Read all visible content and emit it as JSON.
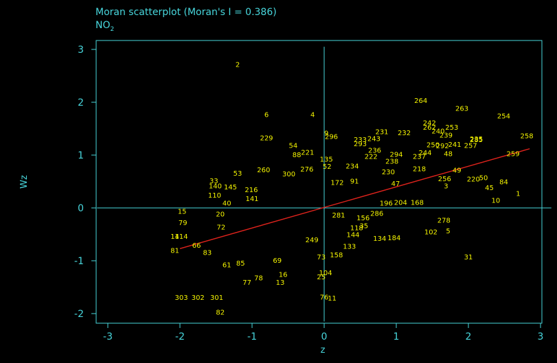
{
  "colors": {
    "background": "#000000",
    "axis": "#48d7dd",
    "points": "#f4f400",
    "fit_line": "#e0231c"
  },
  "chart_data": {
    "type": "scatter",
    "title": "Moran scatterplot (Moran's I = 0.386)",
    "subtitle_main": "NO",
    "subtitle_sub": "2",
    "xlabel": "z",
    "ylabel": "Wz",
    "xlim": [
      -3.15,
      3.15
    ],
    "ylim": [
      -2.15,
      3.05
    ],
    "xticks": [
      -3,
      -2,
      -1,
      0,
      1,
      2,
      3
    ],
    "yticks": [
      -2,
      -1,
      0,
      1,
      2,
      3
    ],
    "xtick_labels": [
      "-3",
      "-2",
      "-1",
      "0",
      "1",
      "2",
      "3"
    ],
    "ytick_labels": [
      "-2",
      "-1",
      "0",
      "1",
      "2",
      "3"
    ],
    "reference_lines": {
      "x": 0,
      "y": 0
    },
    "fit_line": {
      "x": [
        -2.0,
        2.85
      ],
      "y": [
        -0.77,
        1.12
      ],
      "slope": 0.386
    },
    "points": [
      {
        "label": "2",
        "x": -1.2,
        "y": 2.72
      },
      {
        "label": "6",
        "x": -0.8,
        "y": 1.77
      },
      {
        "label": "4",
        "x": -0.16,
        "y": 1.77
      },
      {
        "label": "229",
        "x": -0.8,
        "y": 1.33
      },
      {
        "label": "54",
        "x": -0.43,
        "y": 1.19
      },
      {
        "label": "221",
        "x": -0.23,
        "y": 1.06
      },
      {
        "label": "88",
        "x": -0.38,
        "y": 1.01
      },
      {
        "label": "9",
        "x": 0.03,
        "y": 1.42
      },
      {
        "label": "296",
        "x": 0.1,
        "y": 1.36
      },
      {
        "label": "264",
        "x": 1.34,
        "y": 2.04
      },
      {
        "label": "263",
        "x": 1.91,
        "y": 1.89
      },
      {
        "label": "254",
        "x": 2.49,
        "y": 1.75
      },
      {
        "label": "242",
        "x": 1.46,
        "y": 1.62
      },
      {
        "label": "262",
        "x": 1.46,
        "y": 1.53
      },
      {
        "label": "240",
        "x": 1.58,
        "y": 1.46
      },
      {
        "label": "253",
        "x": 1.77,
        "y": 1.53
      },
      {
        "label": "239",
        "x": 1.69,
        "y": 1.38
      },
      {
        "label": "258",
        "x": 2.81,
        "y": 1.37
      },
      {
        "label": "285",
        "x": 2.11,
        "y": 1.3
      },
      {
        "label": "235",
        "x": 2.11,
        "y": 1.31
      },
      {
        "label": "257",
        "x": 2.03,
        "y": 1.19
      },
      {
        "label": "259",
        "x": 2.62,
        "y": 1.03
      },
      {
        "label": "241",
        "x": 1.81,
        "y": 1.21
      },
      {
        "label": "250",
        "x": 1.51,
        "y": 1.2
      },
      {
        "label": "292",
        "x": 1.64,
        "y": 1.18
      },
      {
        "label": "48",
        "x": 1.72,
        "y": 1.03
      },
      {
        "label": "231",
        "x": 0.8,
        "y": 1.45
      },
      {
        "label": "232",
        "x": 1.11,
        "y": 1.43
      },
      {
        "label": "243",
        "x": 0.69,
        "y": 1.32
      },
      {
        "label": "233",
        "x": 0.5,
        "y": 1.3
      },
      {
        "label": "293",
        "x": 0.5,
        "y": 1.22
      },
      {
        "label": "236",
        "x": 0.7,
        "y": 1.1
      },
      {
        "label": "294",
        "x": 1.0,
        "y": 1.02
      },
      {
        "label": "244",
        "x": 1.4,
        "y": 1.05
      },
      {
        "label": "237",
        "x": 1.32,
        "y": 0.98
      },
      {
        "label": "238",
        "x": 0.94,
        "y": 0.89
      },
      {
        "label": "49",
        "x": 1.84,
        "y": 0.72
      },
      {
        "label": "218",
        "x": 1.32,
        "y": 0.75
      },
      {
        "label": "256",
        "x": 1.67,
        "y": 0.56
      },
      {
        "label": "3",
        "x": 1.69,
        "y": 0.42
      },
      {
        "label": "50",
        "x": 2.21,
        "y": 0.58
      },
      {
        "label": "220",
        "x": 2.07,
        "y": 0.55
      },
      {
        "label": "84",
        "x": 2.49,
        "y": 0.5
      },
      {
        "label": "45",
        "x": 2.29,
        "y": 0.39
      },
      {
        "label": "1",
        "x": 2.69,
        "y": 0.28
      },
      {
        "label": "10",
        "x": 2.38,
        "y": 0.15
      },
      {
        "label": "276",
        "x": -0.24,
        "y": 0.74
      },
      {
        "label": "300",
        "x": -0.49,
        "y": 0.65
      },
      {
        "label": "260",
        "x": -0.84,
        "y": 0.73
      },
      {
        "label": "53",
        "x": -1.2,
        "y": 0.66
      },
      {
        "label": "33",
        "x": -1.53,
        "y": 0.52
      },
      {
        "label": "140",
        "x": -1.51,
        "y": 0.42
      },
      {
        "label": "145",
        "x": -1.3,
        "y": 0.4
      },
      {
        "label": "110",
        "x": -1.52,
        "y": 0.25
      },
      {
        "label": "40",
        "x": -1.35,
        "y": 0.1
      },
      {
        "label": "15",
        "x": -1.97,
        "y": -0.06
      },
      {
        "label": "20",
        "x": -1.44,
        "y": -0.11
      },
      {
        "label": "79",
        "x": -1.96,
        "y": -0.27
      },
      {
        "label": "72",
        "x": -1.43,
        "y": -0.36
      },
      {
        "label": "168",
        "x": 1.29,
        "y": 0.11
      },
      {
        "label": "204",
        "x": 1.06,
        "y": 0.11
      },
      {
        "label": "196",
        "x": 0.86,
        "y": 0.1
      },
      {
        "label": "278",
        "x": 1.66,
        "y": -0.23
      },
      {
        "label": "102",
        "x": 1.48,
        "y": -0.45
      },
      {
        "label": "5",
        "x": 1.72,
        "y": -0.43
      },
      {
        "label": "134",
        "x": 0.77,
        "y": -0.57
      },
      {
        "label": "184",
        "x": 0.97,
        "y": -0.56
      },
      {
        "label": "31",
        "x": 2.0,
        "y": -0.92
      },
      {
        "label": "286",
        "x": 0.73,
        "y": -0.1
      },
      {
        "label": "156",
        "x": 0.54,
        "y": -0.18
      },
      {
        "label": "35",
        "x": 0.55,
        "y": -0.33
      },
      {
        "label": "144",
        "x": 0.4,
        "y": -0.5
      },
      {
        "label": "133",
        "x": 0.35,
        "y": -0.72
      },
      {
        "label": "158",
        "x": 0.17,
        "y": -0.88
      },
      {
        "label": "14",
        "x": -2.07,
        "y": -0.53
      },
      {
        "label": "114",
        "x": -1.98,
        "y": -0.53
      },
      {
        "label": "81",
        "x": -2.07,
        "y": -0.8
      },
      {
        "label": "66",
        "x": -1.77,
        "y": -0.7
      },
      {
        "label": "83",
        "x": -1.62,
        "y": -0.84
      },
      {
        "label": "61",
        "x": -1.35,
        "y": -1.07
      },
      {
        "label": "85",
        "x": -1.16,
        "y": -1.04
      },
      {
        "label": "77",
        "x": -1.07,
        "y": -1.4
      },
      {
        "label": "78",
        "x": -0.91,
        "y": -1.32
      },
      {
        "label": "13",
        "x": -0.61,
        "y": -1.4
      },
      {
        "label": "16",
        "x": -0.57,
        "y": -1.25
      },
      {
        "label": "69",
        "x": -0.65,
        "y": -0.99
      },
      {
        "label": "104",
        "x": 0.02,
        "y": -1.22
      },
      {
        "label": "25",
        "x": -0.04,
        "y": -1.3
      },
      {
        "label": "303",
        "x": -1.98,
        "y": -1.69
      },
      {
        "label": "302",
        "x": -1.75,
        "y": -1.69
      },
      {
        "label": "301",
        "x": -1.49,
        "y": -1.69
      },
      {
        "label": "82",
        "x": -1.44,
        "y": -1.97
      },
      {
        "label": "76",
        "x": 0.0,
        "y": -1.68
      },
      {
        "label": "11",
        "x": 0.11,
        "y": -1.7
      },
      {
        "label": "172",
        "x": 0.18,
        "y": 0.49
      },
      {
        "label": "234",
        "x": 0.39,
        "y": 0.8
      },
      {
        "label": "230",
        "x": 0.89,
        "y": 0.69
      },
      {
        "label": "47",
        "x": 0.99,
        "y": 0.47
      },
      {
        "label": "216",
        "x": -1.01,
        "y": 0.35
      },
      {
        "label": "141",
        "x": -1.0,
        "y": 0.18
      },
      {
        "label": "281",
        "x": 0.2,
        "y": -0.13
      },
      {
        "label": "249",
        "x": -0.17,
        "y": -0.6
      },
      {
        "label": "118",
        "x": 0.45,
        "y": -0.37
      },
      {
        "label": "73",
        "x": -0.04,
        "y": -0.92
      },
      {
        "label": "135",
        "x": 0.03,
        "y": 0.93
      },
      {
        "label": "222",
        "x": 0.65,
        "y": 0.98
      },
      {
        "label": "52",
        "x": 0.04,
        "y": 0.79
      },
      {
        "label": "91",
        "x": 0.42,
        "y": 0.51
      }
    ]
  }
}
